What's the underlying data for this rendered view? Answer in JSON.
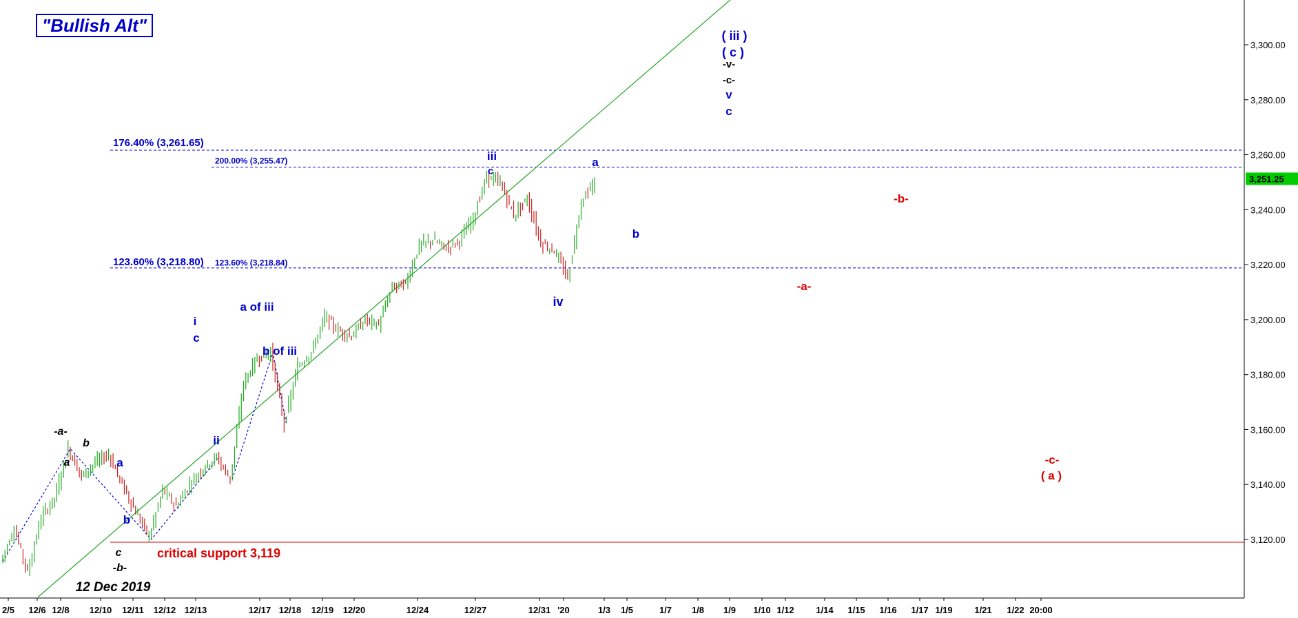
{
  "chart_data": {
    "type": "candlestick",
    "title": "\"Bullish Alt\"",
    "y_axis": {
      "ticks": [
        3120,
        3140,
        3160,
        3180,
        3200,
        3220,
        3240,
        3260,
        3280,
        3300
      ],
      "tick_labels": [
        "3,120.00",
        "3,140.00",
        "3,160.00",
        "3,180.00",
        "3,200.00",
        "3,220.00",
        "3,240.00",
        "3,260.00",
        "3,280.00",
        "3,300.00"
      ],
      "range": [
        3098,
        3316
      ],
      "side": "right"
    },
    "last_price": {
      "value": 3251.25,
      "label": "3,251.25",
      "color": "#00cc00"
    },
    "x_axis": {
      "labels": [
        "2/5",
        "12/6",
        "12/8",
        "12/10",
        "12/11",
        "12/12",
        "12/13",
        "12/17",
        "12/18",
        "12/19",
        "12/20",
        "12/24",
        "12/27",
        "12/31",
        "'20",
        "1/3",
        "1/5",
        "1/7",
        "1/8",
        "1/9",
        "1/10",
        "1/12",
        "1/14",
        "1/15",
        "1/16",
        "1/17",
        "1/19",
        "1/21",
        "1/22",
        "20:00"
      ]
    },
    "horizontal_lines": [
      {
        "label": "176.40% (3,261.65)",
        "value": 3261.65,
        "color": "#0000cc",
        "style": "dashed"
      },
      {
        "label": "200.00% (3,255.47)",
        "value": 3255.47,
        "color": "#0000cc",
        "style": "dashed"
      },
      {
        "label": "123.60% (3,218.80)",
        "value": 3218.8,
        "color": "#0000cc",
        "style": "dashed"
      },
      {
        "label": "123.60% (3,218.84)",
        "value": 3218.84,
        "color": "#0000cc",
        "style": "dashed"
      },
      {
        "label": "critical support 3,119",
        "value": 3119,
        "color": "#dd0000",
        "style": "solid"
      }
    ],
    "trendline": {
      "color": "#33aa33",
      "from_price": 3099,
      "to_price": 3325
    },
    "price_path": [
      [
        0,
        3112
      ],
      [
        1,
        3124
      ],
      [
        2,
        3108
      ],
      [
        3,
        3128
      ],
      [
        4,
        3135
      ],
      [
        5,
        3153
      ],
      [
        6,
        3143
      ],
      [
        7,
        3148
      ],
      [
        8,
        3151
      ],
      [
        9,
        3140
      ],
      [
        10,
        3130
      ],
      [
        11,
        3121
      ],
      [
        12,
        3138
      ],
      [
        13,
        3132
      ],
      [
        14,
        3140
      ],
      [
        15,
        3146
      ],
      [
        16,
        3150
      ],
      [
        17,
        3142
      ],
      [
        18,
        3177
      ],
      [
        19,
        3186
      ],
      [
        20,
        3188
      ],
      [
        21,
        3162
      ],
      [
        22,
        3183
      ],
      [
        23,
        3188
      ],
      [
        24,
        3201
      ],
      [
        25,
        3196
      ],
      [
        26,
        3194
      ],
      [
        27,
        3200
      ],
      [
        28,
        3198
      ],
      [
        29,
        3212
      ],
      [
        30,
        3213
      ],
      [
        31,
        3227
      ],
      [
        32,
        3229
      ],
      [
        33,
        3226
      ],
      [
        34,
        3229
      ],
      [
        35,
        3237
      ],
      [
        36,
        3252
      ],
      [
        37,
        3250
      ],
      [
        38,
        3238
      ],
      [
        39,
        3244
      ],
      [
        40,
        3228
      ],
      [
        41,
        3225
      ],
      [
        42,
        3215
      ],
      [
        43,
        3243
      ],
      [
        44,
        3250
      ]
    ],
    "wave_labels": [
      {
        "text": "-a-",
        "color": "#000000",
        "italic": true
      },
      {
        "text": "a",
        "color": "#000000",
        "italic": true
      },
      {
        "text": "b",
        "color": "#000000",
        "italic": true
      },
      {
        "text": "c",
        "color": "#000000",
        "italic": true
      },
      {
        "text": "-b-",
        "color": "#000000",
        "italic": true
      },
      {
        "text": "12 Dec 2019",
        "color": "#000000",
        "italic": true
      },
      {
        "text": "a",
        "color": "#0000cc"
      },
      {
        "text": "b",
        "color": "#0000cc"
      },
      {
        "text": "i",
        "color": "#0000cc"
      },
      {
        "text": "c",
        "color": "#0000cc"
      },
      {
        "text": "ii",
        "color": "#0000cc"
      },
      {
        "text": "a of iii",
        "color": "#0000cc"
      },
      {
        "text": "b of iii",
        "color": "#0000cc"
      },
      {
        "text": "iii",
        "color": "#0000cc"
      },
      {
        "text": "c",
        "color": "#0000cc"
      },
      {
        "text": "iv",
        "color": "#0000cc"
      },
      {
        "text": "a",
        "color": "#0000cc"
      },
      {
        "text": "b",
        "color": "#0000cc"
      },
      {
        "text": "( iii )",
        "color": "#0000cc"
      },
      {
        "text": "( c )",
        "color": "#0000cc"
      },
      {
        "text": "-v-",
        "color": "#000000"
      },
      {
        "text": "-c-",
        "color": "#000000"
      },
      {
        "text": "v",
        "color": "#0000cc"
      },
      {
        "text": "c",
        "color": "#0000cc"
      },
      {
        "text": "-b-",
        "color": "#dd0000"
      },
      {
        "text": "-a-",
        "color": "#dd0000"
      },
      {
        "text": "-c-",
        "color": "#dd0000"
      },
      {
        "text": "( a )",
        "color": "#dd0000"
      }
    ]
  }
}
